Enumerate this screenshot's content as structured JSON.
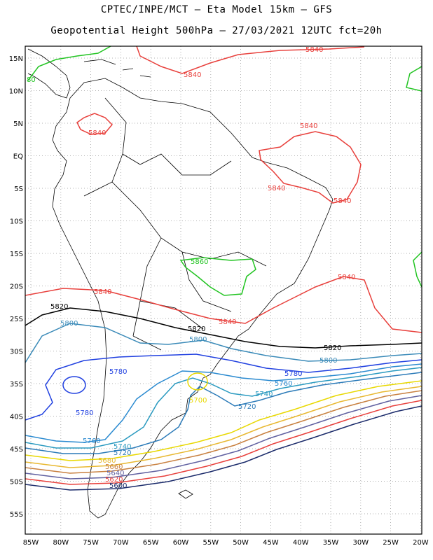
{
  "header": {
    "title_line1": "CPTEC/INPE/MCT  –   Eta Model 15km  –  GFS",
    "title_line2": "Geopotential Height 500hPa  –  27/03/2021  12UTC  fct=20h"
  },
  "axes": {
    "lat_labels": [
      "15N",
      "10N",
      "5N",
      "EQ",
      "5S",
      "10S",
      "15S",
      "20S",
      "25S",
      "30S",
      "35S",
      "40S",
      "45S",
      "50S",
      "55S"
    ],
    "lon_labels": [
      "85W",
      "80W",
      "75W",
      "70W",
      "65W",
      "60W",
      "55W",
      "50W",
      "45W",
      "40W",
      "35W",
      "30W",
      "25W",
      "20W"
    ]
  },
  "contour_labels": [
    {
      "text": "5840",
      "color": "#e8403c"
    },
    {
      "text": "5840",
      "color": "#e8403c"
    },
    {
      "text": "5840",
      "color": "#e8403c"
    },
    {
      "text": "5840",
      "color": "#e8403c"
    },
    {
      "text": "5840",
      "color": "#e8403c"
    },
    {
      "text": "5840",
      "color": "#e8403c"
    },
    {
      "text": "5840",
      "color": "#e8403c"
    },
    {
      "text": "5840",
      "color": "#e8403c"
    },
    {
      "text": "5840",
      "color": "#e8403c"
    },
    {
      "text": "5860",
      "color": "#22c422"
    },
    {
      "text": "5820",
      "color": "#000000"
    },
    {
      "text": "5820",
      "color": "#000000"
    },
    {
      "text": "5820",
      "color": "#000000"
    },
    {
      "text": "5800",
      "color": "#3a8ab8"
    },
    {
      "text": "5800",
      "color": "#3a8ab8"
    },
    {
      "text": "5800",
      "color": "#3a8ab8"
    },
    {
      "text": "5780",
      "color": "#2040e0"
    },
    {
      "text": "5780",
      "color": "#2040e0"
    },
    {
      "text": "5780",
      "color": "#2040e0"
    },
    {
      "text": "5760",
      "color": "#2a8ad0"
    },
    {
      "text": "5760",
      "color": "#2a8ad0"
    },
    {
      "text": "5740",
      "color": "#2a9ac0"
    },
    {
      "text": "5740",
      "color": "#2a9ac0"
    },
    {
      "text": "5720",
      "color": "#2a7ab8"
    },
    {
      "text": "5720",
      "color": "#2a7ab8"
    },
    {
      "text": "5700",
      "color": "#e8d800"
    },
    {
      "text": "5680",
      "color": "#e8b830"
    },
    {
      "text": "5660",
      "color": "#c88040"
    },
    {
      "text": "5640",
      "color": "#6060a0"
    },
    {
      "text": "5620",
      "color": "#e8403c"
    },
    {
      "text": "5600",
      "color": "#1a2a6a"
    },
    {
      "text": "80",
      "color": "#22c422"
    }
  ]
}
